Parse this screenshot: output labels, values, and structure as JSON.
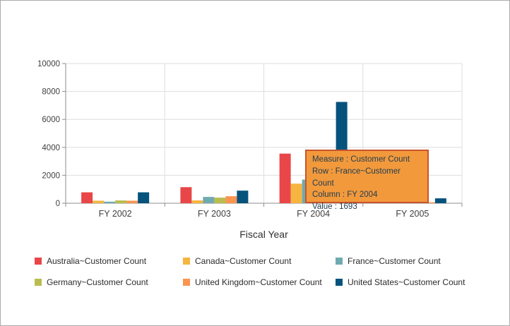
{
  "widget": {
    "type": "olap-bar-chart",
    "background": "#ffffff",
    "border_color": "#ababab"
  },
  "chart_data": {
    "type": "bar",
    "title": "",
    "xlabel": "Fiscal Year",
    "ylabel": "",
    "ylim": [
      0,
      10000
    ],
    "ytick_step": 2000,
    "ytick_labels": [
      "0",
      "2000",
      "4000",
      "6000",
      "8000",
      "10000"
    ],
    "grid": true,
    "legend_position": "bottom",
    "categories": [
      "FY 2002",
      "FY 2003",
      "FY 2004",
      "FY 2005"
    ],
    "series": [
      {
        "name": "Australia~Customer Count",
        "color": "#E94649",
        "values": [
          780,
          1150,
          3550,
          100
        ]
      },
      {
        "name": "Canada~Customer Count",
        "color": "#F6B53F",
        "values": [
          180,
          200,
          1400,
          60
        ]
      },
      {
        "name": "France~Customer Count",
        "color": "#6FAAB0",
        "values": [
          110,
          450,
          1693,
          80
        ]
      },
      {
        "name": "Germany~Customer Count",
        "color": "#B9BD4F",
        "values": [
          200,
          400,
          1600,
          60
        ]
      },
      {
        "name": "United Kingdom~Customer Count",
        "color": "#FB954F",
        "values": [
          180,
          500,
          1800,
          70
        ]
      },
      {
        "name": "United States~Customer Count",
        "color": "#05527D",
        "values": [
          780,
          900,
          7250,
          350
        ]
      }
    ],
    "axis_color": "#8e8e8e",
    "grid_color": "#dedede",
    "tick_label_color": "#3f3f3f"
  },
  "tooltip": {
    "lines": [
      "Measure : Customer Count",
      "Row : France~Customer Count",
      "Column : FY 2004",
      "Value : 1693"
    ],
    "bg": "#F2993C",
    "border": "#C8542C",
    "text": "#1E3C50"
  }
}
